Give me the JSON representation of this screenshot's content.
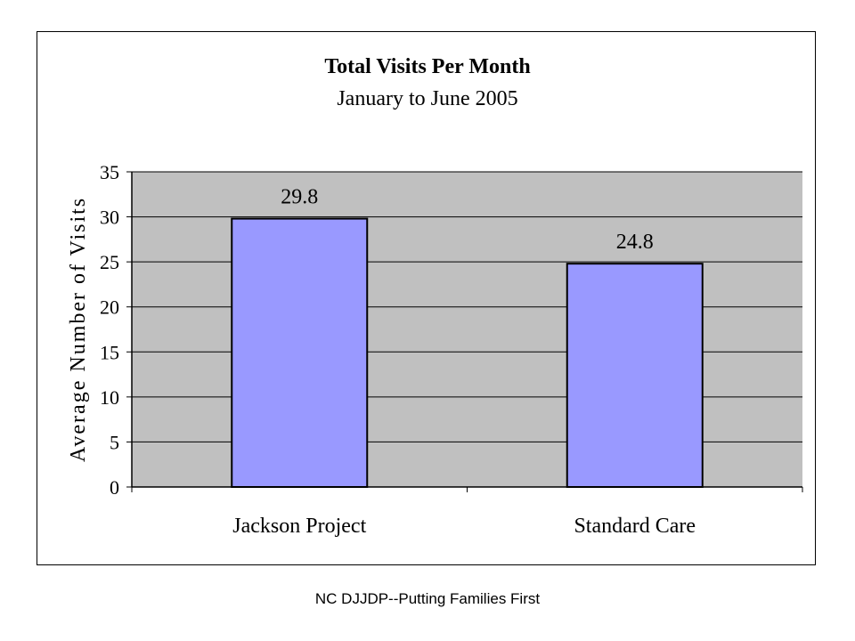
{
  "footer": "NC DJJDP--Putting Families First",
  "chart_data": {
    "type": "bar",
    "title": "Total Visits Per Month",
    "subtitle": "January to June 2005",
    "ylabel": "Average Number of Visits",
    "xlabel": "",
    "categories": [
      "Jackson Project",
      "Standard Care"
    ],
    "values": [
      29.8,
      24.8
    ],
    "data_labels": [
      "29.8",
      "24.8"
    ],
    "ylim": [
      0,
      35
    ],
    "yticks": [
      0,
      5,
      10,
      15,
      20,
      25,
      30,
      35
    ],
    "grid": true,
    "legend": "none",
    "colors": {
      "bar": "#9999ff",
      "plot_background": "#c0c0c0",
      "gridline": "#000000"
    }
  }
}
